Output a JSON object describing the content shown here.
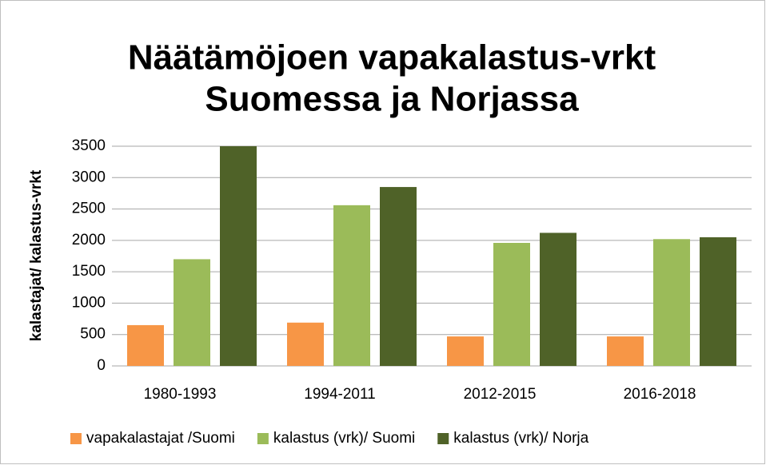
{
  "chart_data": {
    "type": "bar",
    "title": [
      "Näätämöjoen vapakalastus-vrkt",
      "Suomessa ja Norjassa"
    ],
    "y_label": "kalastajat/ kalastus-vrkt",
    "categories": [
      "1980-1993",
      "1994-2011",
      "2012-2015",
      "2016-2018"
    ],
    "series": [
      {
        "name": "vapakalastajat /Suomi",
        "color": "#f79646",
        "values": [
          650,
          690,
          470,
          470
        ]
      },
      {
        "name": "kalastus (vrk)/ Suomi",
        "color": "#9bbb59",
        "values": [
          1700,
          2560,
          1960,
          2020
        ]
      },
      {
        "name": "kalastus (vrk)/ Norja",
        "color": "#4f6228",
        "values": [
          3500,
          2850,
          2120,
          2050
        ]
      }
    ],
    "ylim": [
      0,
      3500
    ],
    "yticks": [
      0,
      500,
      1000,
      1500,
      2000,
      2500,
      3000,
      3500
    ],
    "grid": true,
    "legend": "bottom"
  }
}
